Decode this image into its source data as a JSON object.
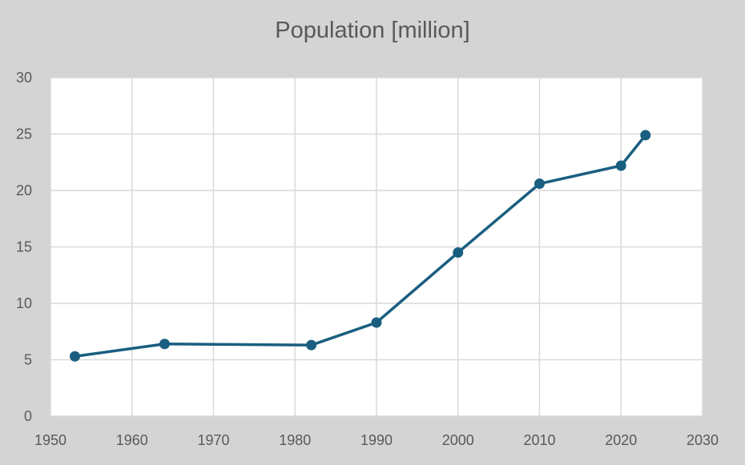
{
  "chart_data": {
    "type": "scatter",
    "title": "Population [million]",
    "xlabel": "",
    "ylabel": "",
    "xlim": [
      1950,
      2030
    ],
    "ylim": [
      0,
      30
    ],
    "xticks": [
      1950,
      1960,
      1970,
      1980,
      1990,
      2000,
      2010,
      2020,
      2030
    ],
    "yticks": [
      0,
      5,
      10,
      15,
      20,
      25,
      30
    ],
    "grid": true,
    "legend": "none",
    "series": [
      {
        "color": "#1a5e80",
        "x": [
          1953,
          1964,
          1982,
          1990,
          2000,
          2010,
          2020,
          2023
        ],
        "y": [
          5.3,
          6.4,
          6.3,
          8.3,
          14.5,
          20.6,
          22.2,
          24.9
        ]
      }
    ]
  }
}
